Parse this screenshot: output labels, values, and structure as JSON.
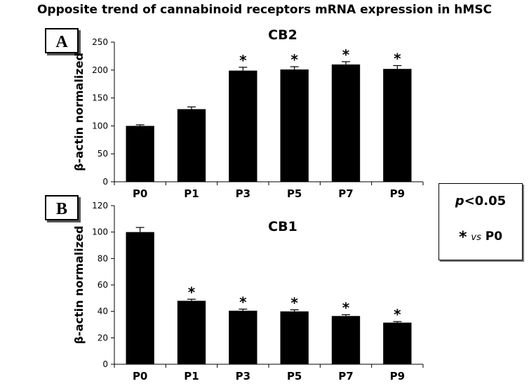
{
  "page": {
    "title": "Opposite trend of cannabinoid receptors mRNA expression in hMSC"
  },
  "legend": {
    "p_symbol": "p",
    "p_threshold": "<0.05",
    "star": "*",
    "vs": "vs",
    "reference": "P0"
  },
  "colors": {
    "bar": "#000000",
    "axis": "#000000",
    "background": "#ffffff"
  },
  "chart_data": [
    {
      "type": "bar",
      "panel_label": "A",
      "title": "CB2",
      "ylabel": "β-actin normalized",
      "xlabel": "",
      "categories": [
        "P0",
        "P1",
        "P3",
        "P5",
        "P7",
        "P9"
      ],
      "values": [
        100,
        130,
        199,
        201,
        210,
        202
      ],
      "errors": [
        2,
        4,
        6,
        5,
        5,
        6
      ],
      "significant": [
        false,
        false,
        true,
        true,
        true,
        true
      ],
      "ylim": [
        0,
        250
      ],
      "yticks": [
        0,
        50,
        100,
        150,
        200,
        250
      ],
      "grid": false
    },
    {
      "type": "bar",
      "panel_label": "B",
      "title": "CB1",
      "ylabel": "β-actin normalized",
      "xlabel": "",
      "categories": [
        "P0",
        "P1",
        "P3",
        "P5",
        "P7",
        "P9"
      ],
      "values": [
        100,
        48,
        40.5,
        40,
        36.5,
        31.5
      ],
      "errors": [
        3.5,
        1.2,
        1.2,
        1.2,
        1,
        0.8
      ],
      "significant": [
        false,
        true,
        true,
        true,
        true,
        true
      ],
      "ylim": [
        0,
        120
      ],
      "yticks": [
        0,
        20,
        40,
        60,
        80,
        100,
        120
      ],
      "grid": false
    }
  ]
}
